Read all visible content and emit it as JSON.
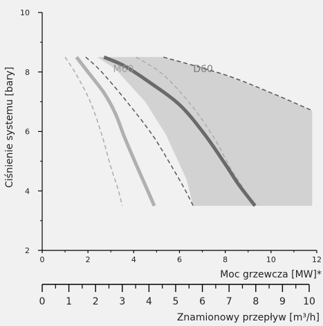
{
  "chart_data": {
    "type": "area",
    "ylabel": "Ciśnienie systemu [bary]",
    "xlabel": "Moc grzewcza [MW]*",
    "xlabel2": "Znamionowy przepływ [m³/h]",
    "xlim": [
      0,
      12
    ],
    "ylim": [
      2,
      10
    ],
    "x2lim": [
      0,
      10
    ],
    "xticks": [
      0,
      2,
      4,
      6,
      8,
      10,
      12
    ],
    "yticks": [
      2,
      4,
      6,
      8,
      10
    ],
    "x2ticks": [
      0,
      1,
      2,
      3,
      4,
      5,
      6,
      7,
      8,
      9,
      10
    ],
    "grid": false,
    "regions": [
      {
        "name": "D60",
        "fill": "#d2d2d2",
        "boundary": [
          [
            2.4,
            8.5
          ],
          [
            5.3,
            8.5
          ],
          [
            8.0,
            7.9
          ],
          [
            10.0,
            7.3
          ],
          [
            11.8,
            6.7
          ],
          [
            11.8,
            3.5
          ],
          [
            6.6,
            3.5
          ],
          [
            6.3,
            4.4
          ],
          [
            5.4,
            5.9
          ],
          [
            4.5,
            7.0
          ],
          [
            3.2,
            8.1
          ],
          [
            2.4,
            8.5
          ]
        ]
      }
    ],
    "series": [
      {
        "name": "D60",
        "color": "#6a6a6a",
        "style": "solid",
        "width": 5,
        "points": [
          [
            2.7,
            8.5
          ],
          [
            3.6,
            8.2
          ],
          [
            4.6,
            7.7
          ],
          [
            6.0,
            6.9
          ],
          [
            7.1,
            5.9
          ],
          [
            8.0,
            4.9
          ],
          [
            8.6,
            4.2
          ],
          [
            9.3,
            3.5
          ]
        ]
      },
      {
        "name": "M60",
        "color": "#b0b0b0",
        "style": "solid",
        "width": 5,
        "points": [
          [
            1.5,
            8.5
          ],
          [
            2.0,
            8.0
          ],
          [
            2.7,
            7.3
          ],
          [
            3.2,
            6.6
          ],
          [
            3.6,
            5.8
          ],
          [
            4.1,
            4.9
          ],
          [
            4.5,
            4.2
          ],
          [
            4.9,
            3.5
          ]
        ]
      },
      {
        "name": "",
        "color": "#ababab",
        "style": "dashed",
        "width": 1.5,
        "points": [
          [
            1.0,
            8.5
          ],
          [
            1.5,
            7.9
          ],
          [
            2.1,
            7.0
          ],
          [
            2.6,
            5.9
          ],
          [
            3.0,
            4.8
          ],
          [
            3.3,
            4.1
          ],
          [
            3.5,
            3.5
          ]
        ]
      },
      {
        "name": "",
        "color": "#ababab",
        "style": "dashed",
        "width": 1.5,
        "points": [
          [
            4.1,
            8.5
          ],
          [
            5.3,
            7.9
          ],
          [
            6.5,
            6.9
          ],
          [
            7.5,
            5.8
          ],
          [
            8.2,
            4.8
          ],
          [
            8.7,
            4.2
          ],
          [
            9.2,
            3.6
          ]
        ]
      },
      {
        "name": "",
        "color": "#555555",
        "style": "dashed",
        "width": 1.5,
        "points": [
          [
            1.9,
            8.5
          ],
          [
            2.6,
            8.0
          ],
          [
            3.7,
            7.0
          ],
          [
            4.8,
            5.9
          ],
          [
            5.6,
            4.9
          ],
          [
            6.2,
            4.1
          ],
          [
            6.6,
            3.5
          ]
        ]
      },
      {
        "name": "",
        "color": "#555555",
        "style": "dashed",
        "width": 1.5,
        "points": [
          [
            5.3,
            8.5
          ],
          [
            8.0,
            7.9
          ],
          [
            10.0,
            7.3
          ],
          [
            11.8,
            6.7
          ]
        ]
      }
    ],
    "labels": [
      {
        "text": "M60",
        "x": 3.1,
        "y": 8.0,
        "color": "#9a9a9a"
      },
      {
        "text": "D60",
        "x": 6.6,
        "y": 8.0,
        "color": "#7a7a7a"
      }
    ]
  }
}
